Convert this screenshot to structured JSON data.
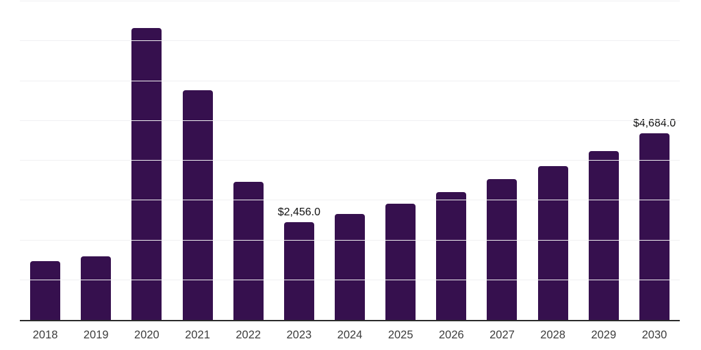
{
  "chart_data": {
    "type": "bar",
    "title": "",
    "xlabel": "",
    "ylabel": "",
    "categories": [
      "2018",
      "2019",
      "2020",
      "2021",
      "2022",
      "2023",
      "2024",
      "2025",
      "2026",
      "2027",
      "2028",
      "2029",
      "2030"
    ],
    "values": [
      1470,
      1595,
      7330,
      5775,
      3475,
      2456,
      2665,
      2920,
      3205,
      3530,
      3870,
      4245,
      4684
    ],
    "data_labels": {
      "2023": "$2,456.0",
      "2030": "$4,684.0"
    },
    "ylim": [
      0,
      8000
    ],
    "gridline_step": 1000,
    "grid": true,
    "legend": "none",
    "y_axis_tick_labels_visible": false,
    "colors": {
      "bar": "#36104e",
      "gridline": "#f0f0f2",
      "axis_line": "#2b2b2b",
      "x_tick_label": "#3d3d3d",
      "data_label": "#111111",
      "background": "#ffffff"
    }
  }
}
